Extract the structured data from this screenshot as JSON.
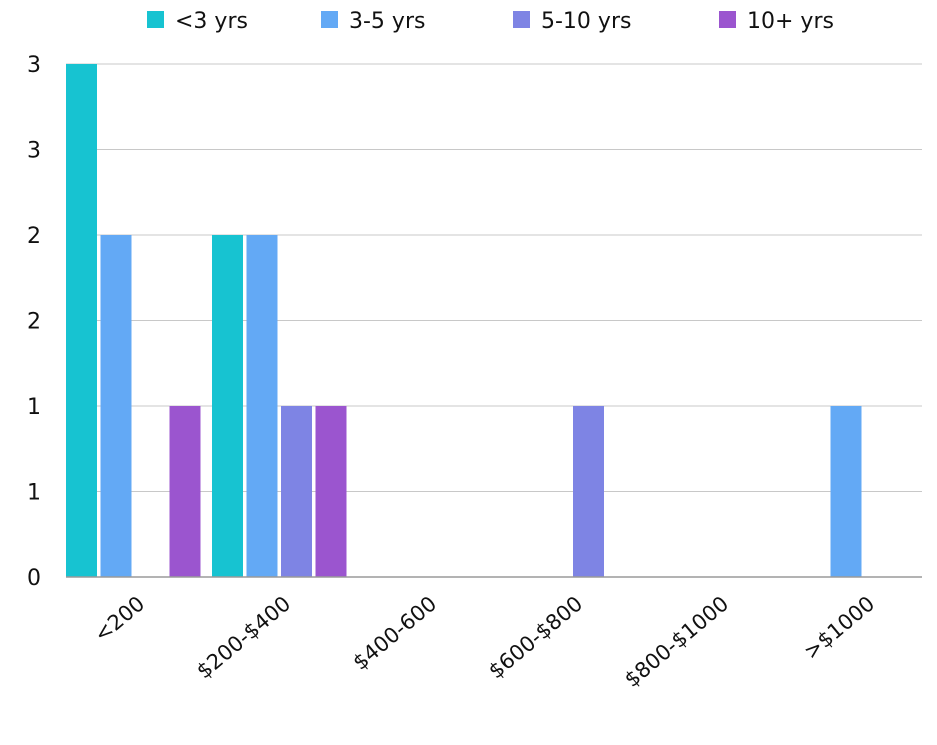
{
  "chart_data": {
    "type": "bar",
    "title": "",
    "xlabel": "",
    "ylabel": "",
    "categories": [
      "<200",
      "$200-$400",
      "$400-600",
      "$600-$800",
      "$800-$1000",
      ">$1000"
    ],
    "series": [
      {
        "name": "<3 yrs",
        "color": "#17C3D1",
        "values": [
          3,
          2,
          0,
          0,
          0,
          0
        ]
      },
      {
        "name": "3-5 yrs",
        "color": "#63A9F5",
        "values": [
          2,
          2,
          0,
          0,
          0,
          1
        ]
      },
      {
        "name": "5-10 yrs",
        "color": "#7E84E4",
        "values": [
          0,
          1,
          0,
          1,
          0,
          0
        ]
      },
      {
        "name": "10+ yrs",
        "color": "#9B55CF",
        "values": [
          1,
          1,
          0,
          0,
          0,
          0
        ]
      }
    ],
    "ylim": [
      0,
      3
    ],
    "ytick_values": [
      0,
      0.5,
      1,
      1.5,
      2,
      2.5,
      3
    ],
    "ytick_labels": [
      "0",
      "1",
      "1",
      "2",
      "2",
      "3",
      "3"
    ],
    "grid": true,
    "legend_position": "top"
  }
}
